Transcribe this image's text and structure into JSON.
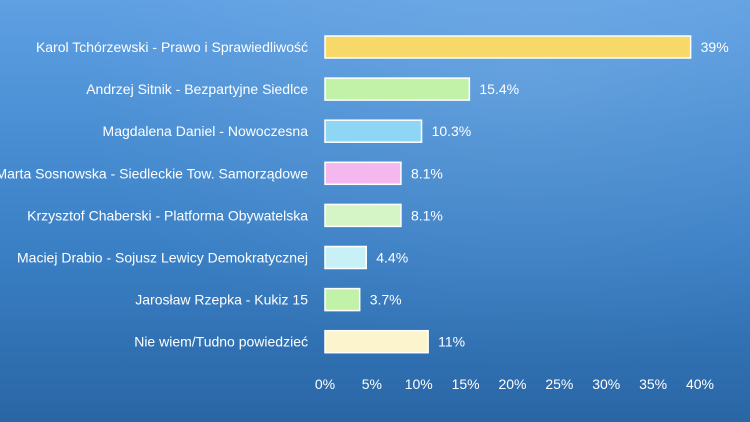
{
  "chart_data": {
    "type": "bar",
    "orientation": "horizontal",
    "title": "",
    "xlabel": "",
    "ylabel": "",
    "categories": [
      "Karol Tchórzewski - Prawo i Sprawiedliwość",
      "Andrzej Sitnik - Bezpartyjne Siedlce",
      "Magdalena Daniel - Nowoczesna",
      "Marta Sosnowska - Siedleckie Tow. Samorządowe",
      "Krzysztof Chaberski - Platforma Obywatelska",
      "Maciej Drabio - Sojusz Lewicy Demokratycznej",
      "Jarosław Rzepka - Kukiz 15",
      "Nie wiem/Tudno powiedzieć"
    ],
    "values": [
      39,
      15.4,
      10.3,
      8.1,
      8.1,
      4.4,
      3.7,
      11
    ],
    "value_labels": [
      "39%",
      "15.4%",
      "10.3%",
      "8.1%",
      "8.1%",
      "4.4%",
      "3.7%",
      "11%"
    ],
    "bar_colors": [
      "#f7d96a",
      "#c2f2a8",
      "#8fd6f5",
      "#f5b8ee",
      "#d6f5c6",
      "#c8f0f7",
      "#c2f2a8",
      "#fbf4cc"
    ],
    "xlim": [
      0,
      40
    ],
    "x_ticks": [
      0,
      5,
      10,
      15,
      20,
      25,
      30,
      35,
      40
    ],
    "x_tick_labels": [
      "0%",
      "5%",
      "10%",
      "15%",
      "20%",
      "25%",
      "30%",
      "35%",
      "40%"
    ],
    "grid": false,
    "legend": "none"
  }
}
